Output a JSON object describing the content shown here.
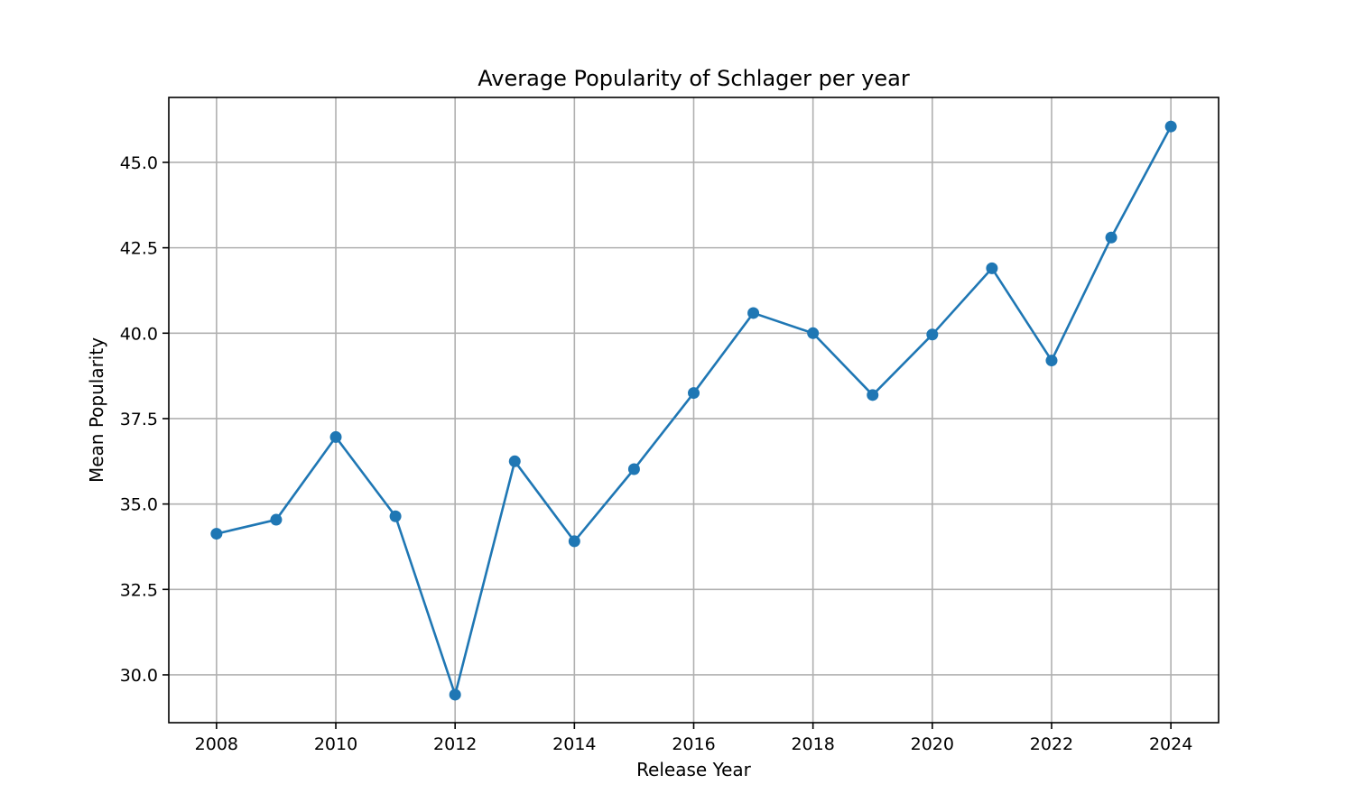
{
  "chart_data": {
    "type": "line",
    "title": "Average Popularity of Schlager per year",
    "xlabel": "Release Year",
    "ylabel": "Mean Popularity",
    "grid": true,
    "xlim": [
      2007.2,
      2024.8
    ],
    "ylim": [
      28.6,
      46.9
    ],
    "xticks": [
      2008,
      2010,
      2012,
      2014,
      2016,
      2018,
      2020,
      2022,
      2024
    ],
    "xtick_labels": [
      "2008",
      "2010",
      "2012",
      "2014",
      "2016",
      "2018",
      "2020",
      "2022",
      "2024"
    ],
    "yticks": [
      30.0,
      32.5,
      35.0,
      37.5,
      40.0,
      42.5,
      45.0
    ],
    "ytick_labels": [
      "30.0",
      "32.5",
      "35.0",
      "37.5",
      "40.0",
      "42.5",
      "45.0"
    ],
    "x": [
      2008,
      2009,
      2010,
      2011,
      2012,
      2013,
      2014,
      2015,
      2016,
      2017,
      2018,
      2019,
      2020,
      2021,
      2022,
      2023,
      2024
    ],
    "series": [
      {
        "values": [
          34.13,
          34.54,
          36.96,
          34.64,
          29.42,
          36.25,
          33.91,
          36.02,
          38.25,
          40.59,
          40.0,
          38.19,
          39.96,
          41.9,
          39.2,
          42.8,
          46.05
        ],
        "color": "#1f77b4",
        "marker": "circle"
      }
    ]
  }
}
